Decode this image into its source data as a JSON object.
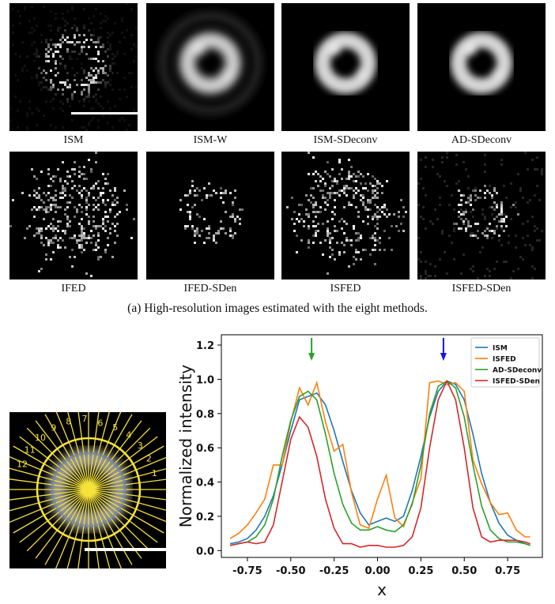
{
  "figure": {
    "row1": [
      {
        "label": "ISM",
        "style": "ism"
      },
      {
        "label": "ISM-W",
        "style": "ismw"
      },
      {
        "label": "ISM-SDeconv",
        "style": "smooth"
      },
      {
        "label": "AD-SDeconv",
        "style": "smooth"
      }
    ],
    "row2": [
      {
        "label": "IFED",
        "style": "ifed"
      },
      {
        "label": "IFED-SDen",
        "style": "ifeds"
      },
      {
        "label": "ISFED",
        "style": "ifed"
      },
      {
        "label": "ISFED-SDen",
        "style": "isfeds"
      }
    ],
    "subcaption": "(a) High-resolution images estimated with the eight methods.",
    "ray_numbers": [
      "1",
      "2",
      "3",
      "4",
      "5",
      "6",
      "7",
      "8",
      "9",
      "10",
      "11",
      "12"
    ]
  },
  "colors": {
    "ISM": "#1f77b4",
    "ISFED": "#ff7f0e",
    "AD-SDeconv": "#2ca02c",
    "ISFED-SDen": "#d62728"
  },
  "chart_data": {
    "type": "line",
    "xlabel": "x",
    "ylabel": "Normalized intensity",
    "xlim": [
      -0.9,
      0.95
    ],
    "ylim": [
      -0.04,
      1.26
    ],
    "xticks": [
      "-0.75",
      "-0.50",
      "-0.25",
      "0.00",
      "0.25",
      "0.50",
      "0.75"
    ],
    "xtick_values": [
      -0.75,
      -0.5,
      -0.25,
      0.0,
      0.25,
      0.5,
      0.75
    ],
    "yticks": [
      "0.0",
      "0.2",
      "0.4",
      "0.6",
      "0.8",
      "1.0",
      "1.2"
    ],
    "ytick_values": [
      0.0,
      0.2,
      0.4,
      0.6,
      0.8,
      1.0,
      1.2
    ],
    "legend_position": "top-right",
    "arrows": [
      {
        "x": -0.38,
        "color": "#2ca02c"
      },
      {
        "x": 0.38,
        "color": "#1414e6"
      }
    ],
    "x": [
      -0.85,
      -0.8,
      -0.75,
      -0.7,
      -0.65,
      -0.6,
      -0.55,
      -0.5,
      -0.45,
      -0.4,
      -0.35,
      -0.3,
      -0.25,
      -0.2,
      -0.15,
      -0.1,
      -0.05,
      0.0,
      0.05,
      0.1,
      0.15,
      0.2,
      0.25,
      0.3,
      0.35,
      0.4,
      0.45,
      0.5,
      0.55,
      0.6,
      0.65,
      0.7,
      0.75,
      0.8,
      0.85,
      0.88
    ],
    "series": [
      {
        "name": "ISM",
        "values": [
          0.04,
          0.05,
          0.07,
          0.12,
          0.2,
          0.32,
          0.5,
          0.7,
          0.88,
          0.9,
          0.92,
          0.85,
          0.7,
          0.52,
          0.35,
          0.22,
          0.15,
          0.17,
          0.19,
          0.17,
          0.2,
          0.35,
          0.55,
          0.78,
          0.93,
          0.99,
          0.97,
          0.88,
          0.68,
          0.45,
          0.28,
          0.16,
          0.09,
          0.06,
          0.04,
          0.03
        ]
      },
      {
        "name": "ISFED",
        "values": [
          0.07,
          0.1,
          0.15,
          0.22,
          0.3,
          0.5,
          0.5,
          0.75,
          0.95,
          0.85,
          0.98,
          0.75,
          0.58,
          0.62,
          0.34,
          0.15,
          0.13,
          0.3,
          0.44,
          0.19,
          0.14,
          0.28,
          0.42,
          0.98,
          0.99,
          0.97,
          0.98,
          0.93,
          0.53,
          0.39,
          0.28,
          0.21,
          0.22,
          0.12,
          0.08,
          0.08
        ]
      },
      {
        "name": "AD-SDeconv",
        "values": [
          0.03,
          0.04,
          0.05,
          0.08,
          0.15,
          0.3,
          0.55,
          0.76,
          0.9,
          0.93,
          0.88,
          0.68,
          0.45,
          0.27,
          0.16,
          0.12,
          0.12,
          0.14,
          0.12,
          0.11,
          0.15,
          0.27,
          0.5,
          0.8,
          0.96,
          0.99,
          0.95,
          0.78,
          0.5,
          0.26,
          0.12,
          0.07,
          0.05,
          0.05,
          0.04,
          0.03
        ]
      },
      {
        "name": "ISFED-SDen",
        "values": [
          0.03,
          0.04,
          0.05,
          0.04,
          0.05,
          0.15,
          0.4,
          0.65,
          0.78,
          0.72,
          0.55,
          0.3,
          0.13,
          0.04,
          0.04,
          0.02,
          0.03,
          0.03,
          0.02,
          0.02,
          0.03,
          0.08,
          0.25,
          0.6,
          0.88,
          0.99,
          0.88,
          0.6,
          0.25,
          0.08,
          0.05,
          0.06,
          0.06,
          0.06,
          0.05,
          0.04
        ]
      }
    ]
  }
}
